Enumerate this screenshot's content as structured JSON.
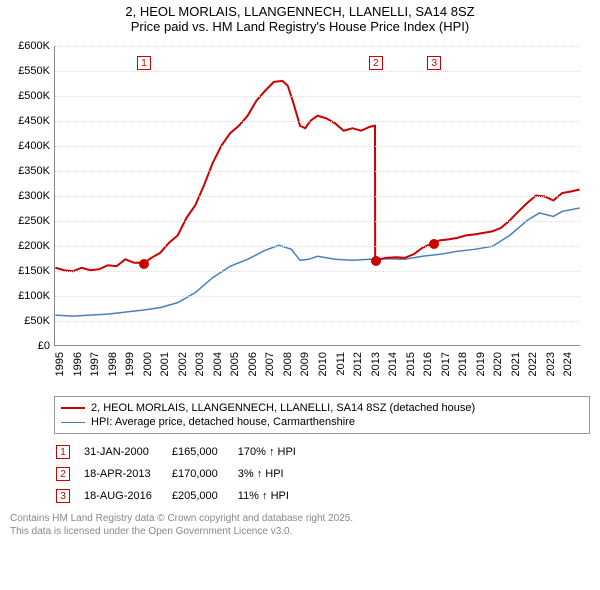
{
  "title": {
    "line1": "2, HEOL MORLAIS, LLANGENNECH, LLANELLI, SA14 8SZ",
    "line2": "Price paid vs. HM Land Registry's House Price Index (HPI)"
  },
  "chart": {
    "type": "line",
    "background_color": "#ffffff",
    "grid_color": "#dddddd",
    "axis_color": "#888888",
    "xlim": [
      1995,
      2025
    ],
    "ylim": [
      0,
      600
    ],
    "ytick_step": 50,
    "yticks": [
      "£0",
      "£50K",
      "£100K",
      "£150K",
      "£200K",
      "£250K",
      "£300K",
      "£350K",
      "£400K",
      "£450K",
      "£500K",
      "£550K",
      "£600K"
    ],
    "xticks": [
      "1995",
      "1996",
      "1997",
      "1998",
      "1999",
      "2000",
      "2001",
      "2002",
      "2003",
      "2004",
      "2005",
      "2006",
      "2007",
      "2008",
      "2009",
      "2010",
      "2011",
      "2012",
      "2013",
      "2014",
      "2015",
      "2016",
      "2017",
      "2018",
      "2019",
      "2020",
      "2021",
      "2022",
      "2023",
      "2024"
    ],
    "series": [
      {
        "name": "price_paid",
        "label": "2, HEOL MORLAIS, LLANGENNECH, LLANELLI, SA14 8SZ (detached house)",
        "color": "#cc0000",
        "line_width": 2,
        "data": [
          [
            1995.0,
            155
          ],
          [
            1995.5,
            150
          ],
          [
            1996.0,
            148
          ],
          [
            1996.5,
            155
          ],
          [
            1997.0,
            150
          ],
          [
            1997.5,
            152
          ],
          [
            1998.0,
            160
          ],
          [
            1998.5,
            158
          ],
          [
            1999.0,
            172
          ],
          [
            1999.5,
            165
          ],
          [
            2000.08,
            165
          ],
          [
            2000.5,
            175
          ],
          [
            2001.0,
            185
          ],
          [
            2001.5,
            205
          ],
          [
            2002.0,
            220
          ],
          [
            2002.5,
            255
          ],
          [
            2003.0,
            280
          ],
          [
            2003.5,
            320
          ],
          [
            2004.0,
            365
          ],
          [
            2004.5,
            400
          ],
          [
            2005.0,
            425
          ],
          [
            2005.5,
            440
          ],
          [
            2006.0,
            460
          ],
          [
            2006.5,
            490
          ],
          [
            2007.0,
            510
          ],
          [
            2007.5,
            528
          ],
          [
            2008.0,
            530
          ],
          [
            2008.3,
            520
          ],
          [
            2008.6,
            488
          ],
          [
            2009.0,
            440
          ],
          [
            2009.3,
            435
          ],
          [
            2009.6,
            450
          ],
          [
            2010.0,
            460
          ],
          [
            2010.5,
            455
          ],
          [
            2011.0,
            445
          ],
          [
            2011.5,
            430
          ],
          [
            2012.0,
            435
          ],
          [
            2012.5,
            430
          ],
          [
            2013.0,
            438
          ],
          [
            2013.29,
            440
          ],
          [
            2013.3,
            170
          ],
          [
            2013.5,
            172
          ],
          [
            2014.0,
            175
          ],
          [
            2014.5,
            176
          ],
          [
            2015.0,
            175
          ],
          [
            2015.5,
            182
          ],
          [
            2016.0,
            195
          ],
          [
            2016.63,
            205
          ],
          [
            2017.0,
            210
          ],
          [
            2017.5,
            212
          ],
          [
            2018.0,
            215
          ],
          [
            2018.5,
            220
          ],
          [
            2019.0,
            222
          ],
          [
            2019.5,
            225
          ],
          [
            2020.0,
            228
          ],
          [
            2020.5,
            235
          ],
          [
            2021.0,
            250
          ],
          [
            2021.5,
            268
          ],
          [
            2022.0,
            285
          ],
          [
            2022.5,
            300
          ],
          [
            2023.0,
            298
          ],
          [
            2023.5,
            290
          ],
          [
            2024.0,
            305
          ],
          [
            2024.5,
            308
          ],
          [
            2025.0,
            312
          ]
        ]
      },
      {
        "name": "hpi",
        "label": "HPI: Average price, detached house, Carmarthenshire",
        "color": "#4a7ebb",
        "line_width": 1.5,
        "data": [
          [
            1995.0,
            60
          ],
          [
            1996.0,
            58
          ],
          [
            1997.0,
            60
          ],
          [
            1998.0,
            62
          ],
          [
            1999.0,
            66
          ],
          [
            2000.0,
            70
          ],
          [
            2001.0,
            75
          ],
          [
            2002.0,
            85
          ],
          [
            2003.0,
            105
          ],
          [
            2004.0,
            135
          ],
          [
            2005.0,
            158
          ],
          [
            2006.0,
            172
          ],
          [
            2007.0,
            190
          ],
          [
            2007.8,
            200
          ],
          [
            2008.5,
            192
          ],
          [
            2009.0,
            170
          ],
          [
            2009.5,
            172
          ],
          [
            2010.0,
            178
          ],
          [
            2011.0,
            172
          ],
          [
            2012.0,
            170
          ],
          [
            2013.0,
            172
          ],
          [
            2014.0,
            173
          ],
          [
            2015.0,
            172
          ],
          [
            2016.0,
            178
          ],
          [
            2017.0,
            182
          ],
          [
            2018.0,
            188
          ],
          [
            2019.0,
            192
          ],
          [
            2020.0,
            198
          ],
          [
            2021.0,
            220
          ],
          [
            2022.0,
            250
          ],
          [
            2022.7,
            265
          ],
          [
            2023.5,
            258
          ],
          [
            2024.0,
            268
          ],
          [
            2025.0,
            275
          ]
        ]
      }
    ],
    "sale_markers": [
      {
        "n": "1",
        "x": 2000.08,
        "y_top": 10,
        "color": "#cc0000",
        "dot_y": 165
      },
      {
        "n": "2",
        "x": 2013.3,
        "y_top": 10,
        "color": "#cc0000",
        "dot_y": 170
      },
      {
        "n": "3",
        "x": 2016.63,
        "y_top": 10,
        "color": "#cc0000",
        "dot_y": 205
      }
    ]
  },
  "sales": [
    {
      "n": "1",
      "date": "31-JAN-2000",
      "price": "£165,000",
      "change": "170% ↑ HPI",
      "color": "#cc0000"
    },
    {
      "n": "2",
      "date": "18-APR-2013",
      "price": "£170,000",
      "change": "3% ↑ HPI",
      "color": "#cc0000"
    },
    {
      "n": "3",
      "date": "18-AUG-2016",
      "price": "£205,000",
      "change": "11% ↑ HPI",
      "color": "#cc0000"
    }
  ],
  "footer": {
    "line1": "Contains HM Land Registry data © Crown copyright and database right 2025.",
    "line2": "This data is licensed under the Open Government Licence v3.0."
  }
}
